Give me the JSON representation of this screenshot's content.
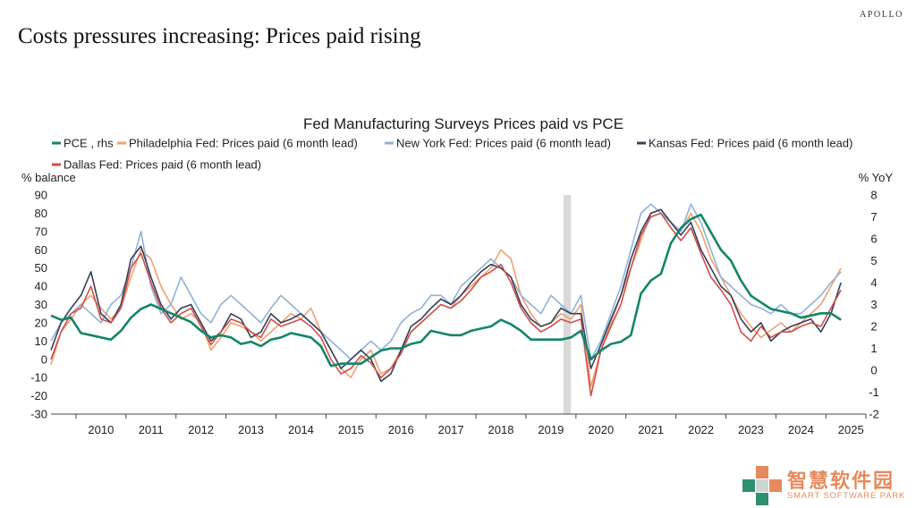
{
  "brand": "APOLLO",
  "page_title": "Costs pressures increasing: Prices paid rising",
  "watermark": {
    "name": "智慧软件园",
    "subtitle": "SMART SOFTWARE PARK"
  },
  "colors": {
    "pce": "#14856a",
    "philadelphia": "#f0a070",
    "new_york": "#8fb2d6",
    "kansas": "#34405c",
    "dallas": "#cf4f48",
    "recession_band": "#d9d9d9"
  },
  "chart_data": {
    "type": "line",
    "title": "Fed Manufacturing Surveys Prices paid vs PCE",
    "ylabel": "% balance",
    "y2label": "% YoY",
    "ylim": [
      -30,
      90
    ],
    "y2lim": [
      -2,
      8
    ],
    "yticks": [
      -30,
      -20,
      -10,
      0,
      10,
      20,
      30,
      40,
      50,
      60,
      70,
      80,
      90
    ],
    "y2ticks": [
      -2,
      -1,
      0,
      1,
      2,
      3,
      4,
      5,
      6,
      7,
      8
    ],
    "xlim": [
      2009.5,
      2025.8
    ],
    "xticks": [
      "2010",
      "2011",
      "2012",
      "2013",
      "2014",
      "2015",
      "2016",
      "2017",
      "2018",
      "2019",
      "2020",
      "2021",
      "2022",
      "2023",
      "2024",
      "2025"
    ],
    "recession_band": [
      2019.75,
      2019.9
    ],
    "grid": false,
    "legend_position": "top",
    "series": [
      {
        "name": "PCE , rhs",
        "axis": "right",
        "color_key": "pce",
        "x": [
          2009.5,
          2009.7,
          2009.9,
          2010.1,
          2010.3,
          2010.5,
          2010.7,
          2010.9,
          2011.1,
          2011.3,
          2011.5,
          2011.7,
          2011.9,
          2012.1,
          2012.3,
          2012.5,
          2012.7,
          2012.9,
          2013.1,
          2013.3,
          2013.5,
          2013.7,
          2013.9,
          2014.1,
          2014.3,
          2014.5,
          2014.7,
          2014.9,
          2015.1,
          2015.3,
          2015.5,
          2015.7,
          2015.9,
          2016.1,
          2016.3,
          2016.5,
          2016.7,
          2016.9,
          2017.1,
          2017.3,
          2017.5,
          2017.7,
          2017.9,
          2018.1,
          2018.3,
          2018.5,
          2018.7,
          2018.9,
          2019.1,
          2019.3,
          2019.5,
          2019.7,
          2019.9,
          2020.1,
          2020.3,
          2020.5,
          2020.7,
          2020.9,
          2021.1,
          2021.3,
          2021.5,
          2021.7,
          2021.9,
          2022.1,
          2022.3,
          2022.5,
          2022.7,
          2022.9,
          2023.1,
          2023.3,
          2023.5,
          2023.7,
          2023.9,
          2024.1,
          2024.3,
          2024.5,
          2024.7,
          2024.9,
          2025.1,
          2025.3
        ],
        "y": [
          2.5,
          2.3,
          2.4,
          1.7,
          1.6,
          1.5,
          1.4,
          1.8,
          2.4,
          2.8,
          3.0,
          2.8,
          2.6,
          2.4,
          2.2,
          1.8,
          1.5,
          1.6,
          1.5,
          1.2,
          1.3,
          1.1,
          1.4,
          1.5,
          1.7,
          1.6,
          1.5,
          1.1,
          0.2,
          0.3,
          0.3,
          0.3,
          0.6,
          0.9,
          1.0,
          1.0,
          1.2,
          1.3,
          1.8,
          1.7,
          1.6,
          1.6,
          1.8,
          1.9,
          2.0,
          2.3,
          2.1,
          1.8,
          1.4,
          1.4,
          1.4,
          1.4,
          1.5,
          1.8,
          0.5,
          0.9,
          1.2,
          1.3,
          1.6,
          3.5,
          4.1,
          4.4,
          5.8,
          6.5,
          6.9,
          7.1,
          6.3,
          5.5,
          5.0,
          4.1,
          3.4,
          3.1,
          2.8,
          2.7,
          2.6,
          2.4,
          2.5,
          2.6,
          2.6,
          2.3
        ]
      },
      {
        "name": "Philadelphia Fed: Prices paid (6 month lead)",
        "axis": "left",
        "color_key": "philadelphia",
        "x": [
          2009.5,
          2009.7,
          2009.9,
          2010.1,
          2010.3,
          2010.5,
          2010.7,
          2010.9,
          2011.1,
          2011.3,
          2011.5,
          2011.7,
          2011.9,
          2012.1,
          2012.3,
          2012.5,
          2012.7,
          2012.9,
          2013.1,
          2013.3,
          2013.5,
          2013.7,
          2013.9,
          2014.1,
          2014.3,
          2014.5,
          2014.7,
          2014.9,
          2015.1,
          2015.3,
          2015.5,
          2015.7,
          2015.9,
          2016.1,
          2016.3,
          2016.5,
          2016.7,
          2016.9,
          2017.1,
          2017.3,
          2017.5,
          2017.7,
          2017.9,
          2018.1,
          2018.3,
          2018.5,
          2018.7,
          2018.9,
          2019.1,
          2019.3,
          2019.5,
          2019.7,
          2019.9,
          2020.1,
          2020.3,
          2020.5,
          2020.7,
          2020.9,
          2021.1,
          2021.3,
          2021.5,
          2021.7,
          2021.9,
          2022.1,
          2022.3,
          2022.5,
          2022.7,
          2022.9,
          2023.1,
          2023.3,
          2023.5,
          2023.7,
          2023.9,
          2024.1,
          2024.3,
          2024.5,
          2024.7,
          2024.9,
          2025.1,
          2025.3
        ],
        "y": [
          -3,
          15,
          22,
          30,
          35,
          28,
          22,
          28,
          45,
          60,
          55,
          40,
          30,
          22,
          25,
          20,
          5,
          12,
          20,
          18,
          15,
          10,
          15,
          20,
          25,
          22,
          28,
          15,
          5,
          -5,
          -10,
          0,
          5,
          -8,
          -5,
          5,
          15,
          20,
          25,
          30,
          28,
          35,
          40,
          45,
          50,
          60,
          55,
          35,
          25,
          18,
          20,
          25,
          22,
          30,
          -15,
          5,
          20,
          35,
          50,
          65,
          80,
          82,
          75,
          70,
          80,
          70,
          55,
          45,
          35,
          25,
          18,
          12,
          16,
          20,
          15,
          20,
          25,
          30,
          40,
          50
        ]
      },
      {
        "name": "New York Fed: Prices paid (6 month lead)",
        "axis": "left",
        "color_key": "new_york",
        "x": [
          2009.5,
          2009.7,
          2009.9,
          2010.1,
          2010.3,
          2010.5,
          2010.7,
          2010.9,
          2011.1,
          2011.3,
          2011.5,
          2011.7,
          2011.9,
          2012.1,
          2012.3,
          2012.5,
          2012.7,
          2012.9,
          2013.1,
          2013.3,
          2013.5,
          2013.7,
          2013.9,
          2014.1,
          2014.3,
          2014.5,
          2014.7,
          2014.9,
          2015.1,
          2015.3,
          2015.5,
          2015.7,
          2015.9,
          2016.1,
          2016.3,
          2016.5,
          2016.7,
          2016.9,
          2017.1,
          2017.3,
          2017.5,
          2017.7,
          2017.9,
          2018.1,
          2018.3,
          2018.5,
          2018.7,
          2018.9,
          2019.1,
          2019.3,
          2019.5,
          2019.7,
          2019.9,
          2020.1,
          2020.3,
          2020.5,
          2020.7,
          2020.9,
          2021.1,
          2021.3,
          2021.5,
          2021.7,
          2021.9,
          2022.1,
          2022.3,
          2022.5,
          2022.7,
          2022.9,
          2023.1,
          2023.3,
          2023.5,
          2023.7,
          2023.9,
          2024.1,
          2024.3,
          2024.5,
          2024.7,
          2024.9,
          2025.1,
          2025.3
        ],
        "y": [
          10,
          20,
          25,
          30,
          25,
          20,
          30,
          35,
          50,
          70,
          40,
          25,
          30,
          45,
          35,
          25,
          20,
          30,
          35,
          30,
          25,
          20,
          28,
          35,
          30,
          25,
          20,
          15,
          10,
          5,
          0,
          5,
          10,
          5,
          10,
          20,
          25,
          28,
          35,
          35,
          30,
          40,
          45,
          50,
          55,
          50,
          45,
          35,
          30,
          25,
          35,
          30,
          25,
          35,
          0,
          10,
          25,
          40,
          60,
          80,
          85,
          80,
          75,
          70,
          85,
          75,
          60,
          45,
          40,
          35,
          30,
          28,
          25,
          30,
          25,
          25,
          30,
          35,
          42,
          48
        ]
      },
      {
        "name": "Kansas Fed: Prices paid (6 month lead)",
        "axis": "left",
        "color_key": "kansas",
        "x": [
          2009.5,
          2009.7,
          2009.9,
          2010.1,
          2010.3,
          2010.5,
          2010.7,
          2010.9,
          2011.1,
          2011.3,
          2011.5,
          2011.7,
          2011.9,
          2012.1,
          2012.3,
          2012.5,
          2012.7,
          2012.9,
          2013.1,
          2013.3,
          2013.5,
          2013.7,
          2013.9,
          2014.1,
          2014.3,
          2014.5,
          2014.7,
          2014.9,
          2015.1,
          2015.3,
          2015.5,
          2015.7,
          2015.9,
          2016.1,
          2016.3,
          2016.5,
          2016.7,
          2016.9,
          2017.1,
          2017.3,
          2017.5,
          2017.7,
          2017.9,
          2018.1,
          2018.3,
          2018.5,
          2018.7,
          2018.9,
          2019.1,
          2019.3,
          2019.5,
          2019.7,
          2019.9,
          2020.1,
          2020.3,
          2020.5,
          2020.7,
          2020.9,
          2021.1,
          2021.3,
          2021.5,
          2021.7,
          2021.9,
          2022.1,
          2022.3,
          2022.5,
          2022.7,
          2022.9,
          2023.1,
          2023.3,
          2023.5,
          2023.7,
          2023.9,
          2024.1,
          2024.3,
          2024.5,
          2024.7,
          2024.9,
          2025.1,
          2025.3
        ],
        "y": [
          5,
          20,
          28,
          35,
          48,
          25,
          20,
          30,
          55,
          62,
          45,
          30,
          22,
          28,
          30,
          20,
          10,
          15,
          25,
          22,
          12,
          15,
          25,
          20,
          22,
          25,
          20,
          15,
          5,
          -5,
          0,
          5,
          0,
          -12,
          -8,
          5,
          18,
          22,
          28,
          33,
          30,
          35,
          42,
          48,
          52,
          50,
          45,
          30,
          22,
          18,
          20,
          28,
          25,
          25,
          -5,
          8,
          22,
          35,
          55,
          70,
          80,
          82,
          75,
          68,
          75,
          60,
          50,
          40,
          35,
          22,
          15,
          20,
          10,
          15,
          18,
          20,
          22,
          15,
          25,
          42
        ]
      },
      {
        "name": "Dallas Fed: Prices paid (6 month lead)",
        "axis": "left",
        "color_key": "dallas",
        "x": [
          2009.5,
          2009.7,
          2009.9,
          2010.1,
          2010.3,
          2010.5,
          2010.7,
          2010.9,
          2011.1,
          2011.3,
          2011.5,
          2011.7,
          2011.9,
          2012.1,
          2012.3,
          2012.5,
          2012.7,
          2012.9,
          2013.1,
          2013.3,
          2013.5,
          2013.7,
          2013.9,
          2014.1,
          2014.3,
          2014.5,
          2014.7,
          2014.9,
          2015.1,
          2015.3,
          2015.5,
          2015.7,
          2015.9,
          2016.1,
          2016.3,
          2016.5,
          2016.7,
          2016.9,
          2017.1,
          2017.3,
          2017.5,
          2017.7,
          2017.9,
          2018.1,
          2018.3,
          2018.5,
          2018.7,
          2018.9,
          2019.1,
          2019.3,
          2019.5,
          2019.7,
          2019.9,
          2020.1,
          2020.3,
          2020.5,
          2020.7,
          2020.9,
          2021.1,
          2021.3,
          2021.5,
          2021.7,
          2021.9,
          2022.1,
          2022.3,
          2022.5,
          2022.7,
          2022.9,
          2023.1,
          2023.3,
          2023.5,
          2023.7,
          2023.9,
          2024.1,
          2024.3,
          2024.5,
          2024.7,
          2024.9,
          2025.1,
          2025.3
        ],
        "y": [
          0,
          15,
          25,
          28,
          40,
          22,
          20,
          28,
          50,
          58,
          42,
          28,
          20,
          25,
          28,
          18,
          8,
          15,
          22,
          20,
          15,
          12,
          22,
          18,
          20,
          22,
          18,
          12,
          0,
          -8,
          -5,
          2,
          -2,
          -10,
          -5,
          3,
          15,
          20,
          25,
          30,
          28,
          32,
          38,
          45,
          48,
          52,
          42,
          28,
          20,
          15,
          18,
          22,
          20,
          22,
          -20,
          5,
          18,
          30,
          50,
          68,
          78,
          80,
          72,
          65,
          72,
          58,
          45,
          38,
          30,
          15,
          10,
          18,
          12,
          15,
          15,
          18,
          20,
          18,
          28,
          38
        ]
      }
    ]
  }
}
